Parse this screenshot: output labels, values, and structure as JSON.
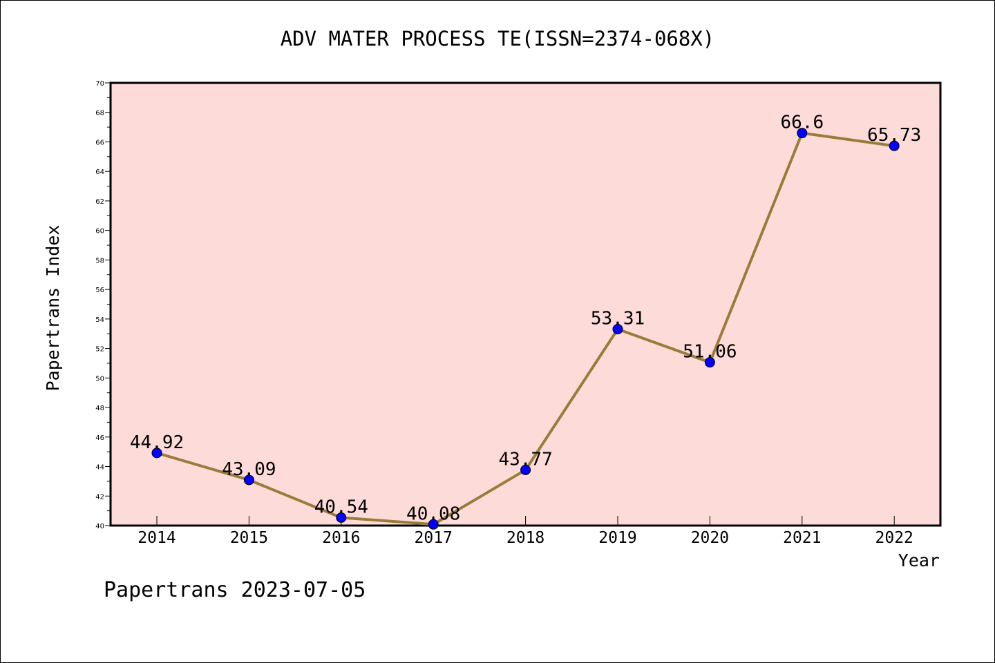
{
  "chart_data": {
    "type": "line",
    "title": "ADV MATER PROCESS TE(ISSN=2374-068X)",
    "xlabel": "Year",
    "ylabel": "Papertrans Index",
    "categories": [
      "2014",
      "2015",
      "2016",
      "2017",
      "2018",
      "2019",
      "2020",
      "2021",
      "2022"
    ],
    "series": [
      {
        "values": [
          44.92,
          43.09,
          40.54,
          40.08,
          43.77,
          53.31,
          51.06,
          66.6,
          65.73
        ],
        "labels": [
          "44.92",
          "43.09",
          "40.54",
          "40.08",
          "43.77",
          "53.31",
          "51.06",
          "66.6",
          "65.73"
        ]
      }
    ],
    "ylim": [
      40,
      70
    ],
    "yticks": [
      40,
      42,
      44,
      46,
      48,
      50,
      52,
      54,
      56,
      58,
      60,
      62,
      64,
      66,
      68,
      70
    ],
    "grid": false,
    "legend": "none",
    "colors": {
      "plot_background": "#fddbd8",
      "line": "#9a7c3a",
      "marker": "#0000ff"
    }
  },
  "footer": {
    "text": "Papertrans 2023-07-05"
  }
}
